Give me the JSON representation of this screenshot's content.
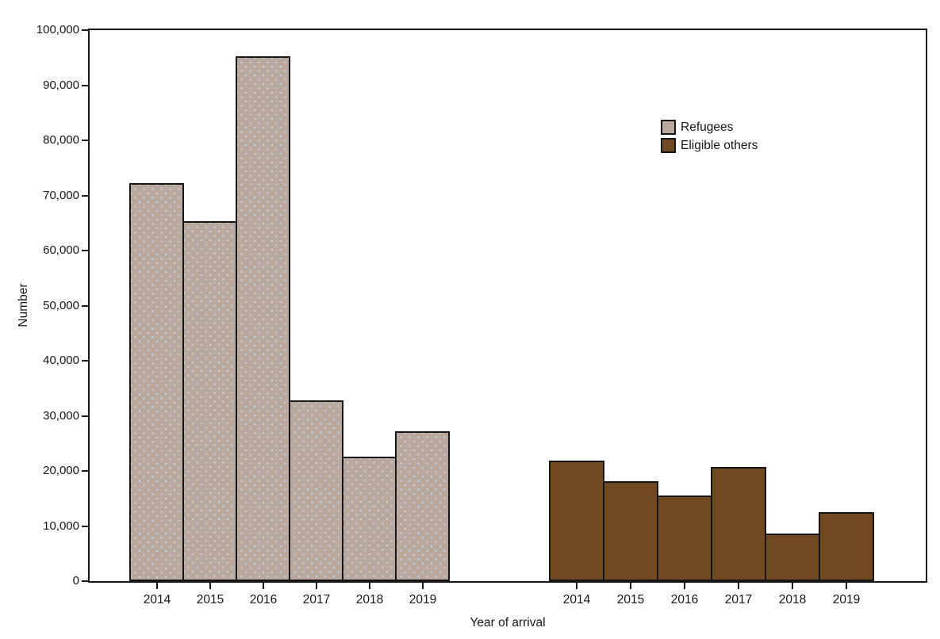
{
  "chart_data": {
    "type": "bar",
    "title": "",
    "xlabel": "Year of arrival",
    "ylabel": "Number",
    "ylim": [
      0,
      100000
    ],
    "ytick_interval": 10000,
    "ytick_labels": [
      "0",
      "10,000",
      "20,000",
      "30,000",
      "40,000",
      "50,000",
      "60,000",
      "70,000",
      "80,000",
      "90,000",
      "100,000"
    ],
    "categories": [
      "2014",
      "2015",
      "2016",
      "2017",
      "2018",
      "2019"
    ],
    "series": [
      {
        "name": "Refugees",
        "color": "#b9a89b",
        "pattern_dot_color": "#c9d3e6",
        "edge_color": "#151515",
        "values": [
          72000,
          65000,
          95000,
          32500,
          22300,
          26900
        ]
      },
      {
        "name": "Eligible others",
        "color": "#714a21",
        "pattern_dot_color": "",
        "edge_color": "#151515",
        "values": [
          21600,
          17900,
          15200,
          20400,
          8400,
          12200
        ]
      }
    ],
    "legend_position": "inside upper-right",
    "grid": false,
    "layout_hint": "two side-by-side year groups along one x-axis, one group per series; x tick labels 2014-2019 repeated under each group"
  }
}
